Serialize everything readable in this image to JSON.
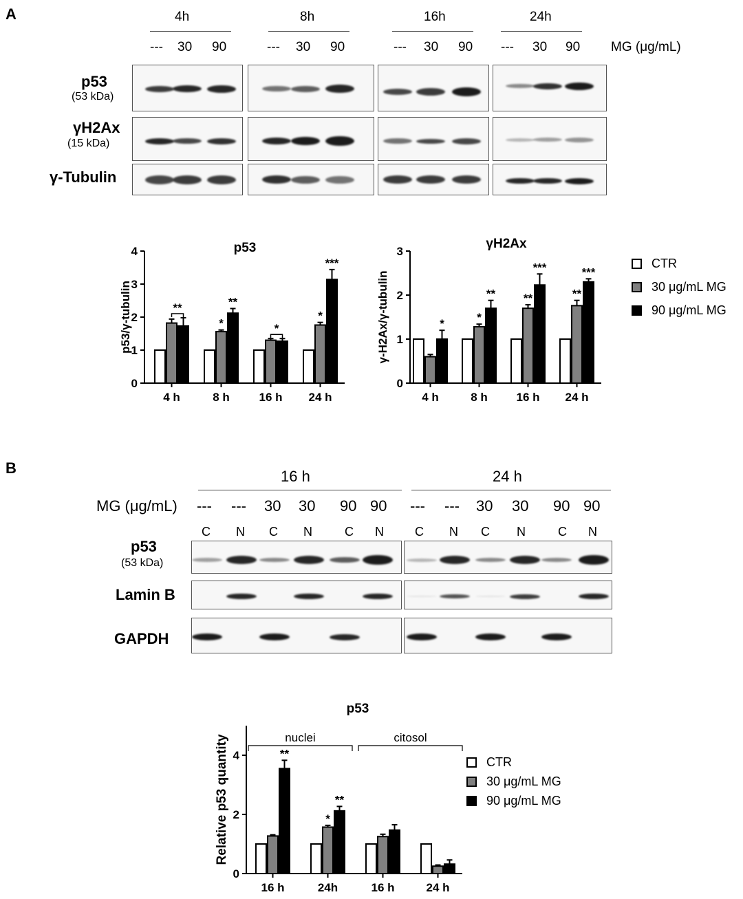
{
  "panels": {
    "a": "A",
    "b": "B"
  },
  "panelA": {
    "times": [
      "4h",
      "8h",
      "16h",
      "24h"
    ],
    "doses": [
      "---",
      "30",
      "90"
    ],
    "mg_label": "MG (μg/mL)",
    "rows": [
      {
        "main": "p53",
        "sub": "(53 kDa)"
      },
      {
        "main": "γH2Ax",
        "sub": "(15 kDa)"
      },
      {
        "main": "γ-Tubulin",
        "sub": ""
      }
    ]
  },
  "panelB": {
    "times": [
      "16 h",
      "24 h"
    ],
    "mg_label": "MG (μg/mL)",
    "doses": [
      "---",
      "---",
      "30",
      "30",
      "90",
      "90"
    ],
    "fractions": [
      "C",
      "N",
      "C",
      "N",
      "C",
      "N"
    ],
    "rows": [
      {
        "main": "p53",
        "sub": "(53 kDa)"
      },
      {
        "main": "Lamin B",
        "sub": ""
      },
      {
        "main": "GAPDH",
        "sub": ""
      }
    ]
  },
  "legend": {
    "items": [
      {
        "label": "CTR",
        "color": "#ffffff"
      },
      {
        "label": "30 μg/mL MG",
        "color": "#808080"
      },
      {
        "label": "90 μg/mL MG",
        "color": "#000000"
      }
    ]
  },
  "chart_data": [
    {
      "type": "bar",
      "title": "p53",
      "ylabel": "p53/γ-tubulin",
      "xlabel": "",
      "categories": [
        "4 h",
        "8 h",
        "16 h",
        "24 h"
      ],
      "ylim": [
        0,
        4
      ],
      "yticks": [
        0,
        1,
        2,
        3,
        4
      ],
      "series": [
        {
          "name": "CTR",
          "values": [
            1.0,
            1.0,
            1.0,
            1.0
          ],
          "errors": [
            0,
            0,
            0,
            0
          ],
          "stars": [
            "",
            "",
            "",
            ""
          ]
        },
        {
          "name": "30 μg/mL MG",
          "values": [
            1.82,
            1.56,
            1.3,
            1.76
          ],
          "errors": [
            0.12,
            0.05,
            0.05,
            0.08
          ],
          "stars": [
            "",
            "*",
            "",
            "*"
          ]
        },
        {
          "name": "90 μg/mL MG",
          "values": [
            1.73,
            2.12,
            1.27,
            3.14
          ],
          "errors": [
            0.25,
            0.14,
            0.08,
            0.3
          ],
          "stars": [
            "",
            "**",
            "",
            "***"
          ]
        }
      ],
      "brackets": [
        {
          "category": 0,
          "label": "**"
        },
        {
          "category": 2,
          "label": "*"
        }
      ]
    },
    {
      "type": "bar",
      "title": "γH2Ax",
      "ylabel": "γ-H2Ax/γ-tubulin",
      "xlabel": "",
      "categories": [
        "4 h",
        "8 h",
        "16 h",
        "24 h"
      ],
      "ylim": [
        0,
        3
      ],
      "yticks": [
        0,
        1,
        2,
        3
      ],
      "series": [
        {
          "name": "CTR",
          "values": [
            1.0,
            1.0,
            1.0,
            1.0
          ],
          "errors": [
            0,
            0,
            0,
            0
          ],
          "stars": [
            "",
            "",
            "",
            ""
          ]
        },
        {
          "name": "30 μg/mL MG",
          "values": [
            0.6,
            1.28,
            1.7,
            1.76
          ],
          "errors": [
            0.05,
            0.06,
            0.08,
            0.12
          ],
          "stars": [
            "",
            "*",
            "**",
            "**"
          ]
        },
        {
          "name": "90 μg/mL MG",
          "values": [
            1.0,
            1.7,
            2.23,
            2.3
          ],
          "errors": [
            0.2,
            0.18,
            0.25,
            0.07
          ],
          "stars": [
            "*",
            "**",
            "***",
            "***"
          ]
        }
      ],
      "brackets": []
    },
    {
      "type": "bar",
      "title": "p53",
      "ylabel": "Relative p53 quantity",
      "xlabel": "",
      "categories": [
        "16 h",
        "24h",
        "16 h",
        "24 h"
      ],
      "groups": [
        {
          "label": "nuclei",
          "categories": [
            0,
            1
          ]
        },
        {
          "label": "citosol",
          "categories": [
            2,
            3
          ]
        }
      ],
      "ylim": [
        0,
        5
      ],
      "yticks": [
        0,
        2,
        4
      ],
      "series": [
        {
          "name": "CTR",
          "values": [
            1.0,
            1.0,
            1.0,
            1.0
          ],
          "errors": [
            0,
            0,
            0,
            0
          ],
          "stars": [
            "",
            "",
            "",
            ""
          ]
        },
        {
          "name": "30 μg/mL MG",
          "values": [
            1.27,
            1.57,
            1.25,
            0.25
          ],
          "errors": [
            0.04,
            0.06,
            0.08,
            0.04
          ],
          "stars": [
            "",
            "*",
            "",
            ""
          ]
        },
        {
          "name": "90 μg/mL MG",
          "values": [
            3.55,
            2.12,
            1.47,
            0.32
          ],
          "errors": [
            0.28,
            0.15,
            0.18,
            0.14
          ],
          "stars": [
            "**",
            "**",
            "",
            ""
          ]
        }
      ],
      "brackets": []
    }
  ]
}
